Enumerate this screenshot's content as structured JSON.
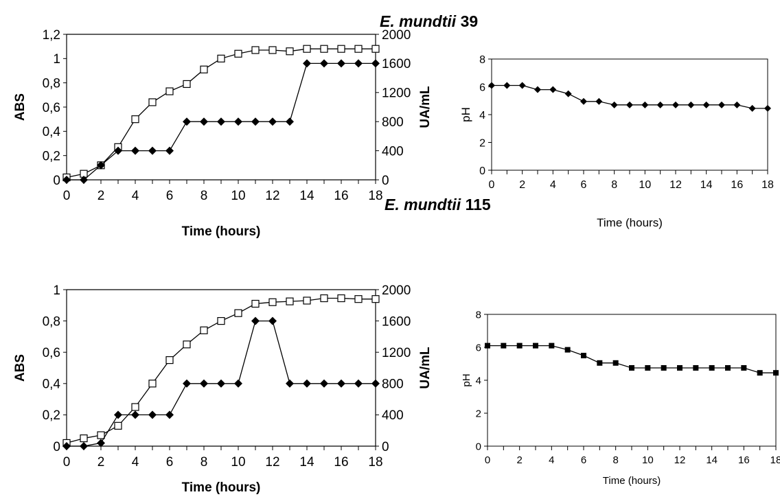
{
  "panels": [
    {
      "species": "E. mundtii",
      "strain": "39"
    },
    {
      "species": "E. mundtii",
      "strain": "115"
    }
  ],
  "chart_data": [
    {
      "type": "line",
      "title": "E. mundtii 39",
      "xlabel": "Time (hours)",
      "ylabel": "ABS",
      "y2label": "UA/mL",
      "x": [
        0,
        1,
        2,
        3,
        4,
        5,
        6,
        7,
        8,
        9,
        10,
        11,
        12,
        13,
        14,
        15,
        16,
        17,
        18
      ],
      "xlim": [
        0,
        18
      ],
      "xticks": [
        "0",
        "2",
        "4",
        "6",
        "8",
        "10",
        "12",
        "14",
        "16",
        "18"
      ],
      "ylim": [
        0,
        1.2
      ],
      "yticks": [
        "0",
        "0,2",
        "0,4",
        "0,6",
        "0,8",
        "1",
        "1,2"
      ],
      "y2lim": [
        0,
        2000
      ],
      "y2ticks": [
        "0",
        "400",
        "800",
        "1200",
        "1600",
        "2000"
      ],
      "grid": false,
      "series": [
        {
          "axis": "left",
          "marker": "open-square",
          "values": [
            0.02,
            0.05,
            0.12,
            0.27,
            0.5,
            0.64,
            0.73,
            0.79,
            0.91,
            1.0,
            1.04,
            1.07,
            1.07,
            1.06,
            1.08,
            1.08,
            1.08,
            1.08,
            1.08
          ]
        },
        {
          "axis": "right",
          "marker": "filled-diamond",
          "values": [
            0,
            0,
            200,
            400,
            400,
            400,
            400,
            800,
            800,
            800,
            800,
            800,
            800,
            800,
            1600,
            1600,
            1600,
            1600,
            1600
          ]
        }
      ]
    },
    {
      "type": "line",
      "xlabel": "Time (hours)",
      "ylabel": "pH",
      "x": [
        0,
        1,
        2,
        3,
        4,
        5,
        6,
        7,
        8,
        9,
        10,
        11,
        12,
        13,
        14,
        15,
        16,
        17,
        18
      ],
      "xlim": [
        0,
        18
      ],
      "xticks": [
        "0",
        "2",
        "4",
        "6",
        "8",
        "10",
        "12",
        "14",
        "16",
        "18"
      ],
      "ylim": [
        0,
        8
      ],
      "yticks": [
        "0",
        "2",
        "4",
        "6",
        "8"
      ],
      "grid": false,
      "series": [
        {
          "marker": "filled-diamond",
          "values": [
            6.1,
            6.1,
            6.1,
            5.8,
            5.8,
            5.5,
            4.95,
            4.95,
            4.7,
            4.7,
            4.7,
            4.7,
            4.7,
            4.7,
            4.7,
            4.7,
            4.7,
            4.45,
            4.45
          ]
        }
      ]
    },
    {
      "type": "line",
      "title": "E. mundtii 115",
      "xlabel": "Time (hours)",
      "ylabel": "ABS",
      "y2label": "UA/mL",
      "x": [
        0,
        1,
        2,
        3,
        4,
        5,
        6,
        7,
        8,
        9,
        10,
        11,
        12,
        13,
        14,
        15,
        16,
        17,
        18
      ],
      "xlim": [
        0,
        18
      ],
      "xticks": [
        "0",
        "2",
        "4",
        "6",
        "8",
        "10",
        "12",
        "14",
        "16",
        "18"
      ],
      "ylim": [
        0,
        1
      ],
      "yticks": [
        "0",
        "0,2",
        "0,4",
        "0,6",
        "0,8",
        "1"
      ],
      "y2lim": [
        0,
        2000
      ],
      "y2ticks": [
        "0",
        "400",
        "800",
        "1200",
        "1600",
        "2000"
      ],
      "grid": false,
      "series": [
        {
          "axis": "left",
          "marker": "open-square",
          "values": [
            0.02,
            0.05,
            0.07,
            0.13,
            0.25,
            0.4,
            0.55,
            0.65,
            0.74,
            0.8,
            0.85,
            0.91,
            0.92,
            0.925,
            0.93,
            0.945,
            0.945,
            0.94,
            0.94
          ]
        },
        {
          "axis": "right",
          "marker": "filled-diamond",
          "values": [
            0,
            0,
            40,
            400,
            400,
            400,
            400,
            800,
            800,
            800,
            800,
            1600,
            1600,
            800,
            800,
            800,
            800,
            800,
            800
          ]
        }
      ]
    },
    {
      "type": "line",
      "xlabel": "Time (hours)",
      "ylabel": "pH",
      "x": [
        0,
        1,
        2,
        3,
        4,
        5,
        6,
        7,
        8,
        9,
        10,
        11,
        12,
        13,
        14,
        15,
        16,
        17,
        18
      ],
      "xlim": [
        0,
        18
      ],
      "xticks": [
        "0",
        "2",
        "4",
        "6",
        "8",
        "10",
        "12",
        "14",
        "16",
        "18"
      ],
      "ylim": [
        0,
        8
      ],
      "yticks": [
        "0",
        "2",
        "4",
        "6",
        "8"
      ],
      "grid": false,
      "series": [
        {
          "marker": "filled-square",
          "values": [
            6.1,
            6.1,
            6.1,
            6.1,
            6.1,
            5.85,
            5.5,
            5.05,
            5.05,
            4.75,
            4.75,
            4.75,
            4.75,
            4.75,
            4.75,
            4.75,
            4.75,
            4.45,
            4.45
          ]
        }
      ]
    }
  ]
}
